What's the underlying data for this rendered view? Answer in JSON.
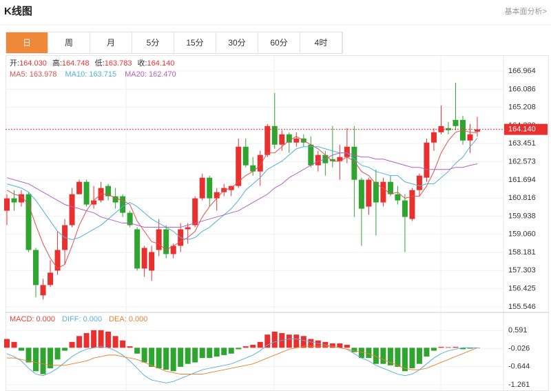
{
  "header": {
    "title": "K线图",
    "link": "基本面分析>"
  },
  "tabs": {
    "items": [
      "日",
      "周",
      "月",
      "5分",
      "15分",
      "30分",
      "60分",
      "4时"
    ],
    "active": 0
  },
  "chart_data": [
    {
      "type": "candlestick",
      "info": [
        {
          "label": "开:",
          "value": "164.030"
        },
        {
          "label": "高:",
          "value": "164.748"
        },
        {
          "label": "低:",
          "value": "163.783"
        },
        {
          "label": "收:",
          "value": "164.140"
        }
      ],
      "info_value_color": "#e8312f",
      "ohlc": [
        [
          160.2,
          161.0,
          159.5,
          160.8
        ],
        [
          160.8,
          161.2,
          160.2,
          160.6
        ],
        [
          160.6,
          161.2,
          160.4,
          161.0
        ],
        [
          161.0,
          161.1,
          158.2,
          158.3
        ],
        [
          158.3,
          158.4,
          156.0,
          156.6
        ],
        [
          156.1,
          156.9,
          155.9,
          156.6
        ],
        [
          156.6,
          157.8,
          156.5,
          157.2
        ],
        [
          157.3,
          159.2,
          157.1,
          158.3
        ],
        [
          158.3,
          159.8,
          157.6,
          159.5
        ],
        [
          159.5,
          161.3,
          159.4,
          161.0
        ],
        [
          161.0,
          161.7,
          161.0,
          161.6
        ],
        [
          161.6,
          161.7,
          160.4,
          160.5
        ],
        [
          160.5,
          161.4,
          160.3,
          160.7
        ],
        [
          160.7,
          161.6,
          160.6,
          161.3
        ],
        [
          161.4,
          161.5,
          160.7,
          160.9
        ],
        [
          160.9,
          161.3,
          160.3,
          160.6
        ],
        [
          160.9,
          161.0,
          159.9,
          160.1
        ],
        [
          160.1,
          160.2,
          159.4,
          159.5
        ],
        [
          159.3,
          159.4,
          157.3,
          157.4
        ],
        [
          157.4,
          158.5,
          157.0,
          158.4
        ],
        [
          157.3,
          158.5,
          156.8,
          158.2
        ],
        [
          158.3,
          159.8,
          158.0,
          159.3
        ],
        [
          159.3,
          159.5,
          157.9,
          158.1
        ],
        [
          158.1,
          158.6,
          157.9,
          158.5
        ],
        [
          158.5,
          159.6,
          158.2,
          159.3
        ],
        [
          159.3,
          159.6,
          158.6,
          159.4
        ],
        [
          159.5,
          160.9,
          159.4,
          160.8
        ],
        [
          160.8,
          162.0,
          160.7,
          161.8
        ],
        [
          161.8,
          161.9,
          160.4,
          160.8
        ],
        [
          160.8,
          161.3,
          160.2,
          161.1
        ],
        [
          161.1,
          161.5,
          160.9,
          161.3
        ],
        [
          161.2,
          161.4,
          160.9,
          161.4
        ],
        [
          161.4,
          163.7,
          161.3,
          163.3
        ],
        [
          163.3,
          163.7,
          162.3,
          162.4
        ],
        [
          162.4,
          162.8,
          161.9,
          162.1
        ],
        [
          162.1,
          163.1,
          161.4,
          162.9
        ],
        [
          162.9,
          164.4,
          162.8,
          164.3
        ],
        [
          164.3,
          165.9,
          163.2,
          163.4
        ],
        [
          163.4,
          164.1,
          163.1,
          163.9
        ],
        [
          163.9,
          164.0,
          163.0,
          163.5
        ],
        [
          163.5,
          164.0,
          163.3,
          163.7
        ],
        [
          163.7,
          163.9,
          163.3,
          163.5
        ],
        [
          163.4,
          163.8,
          162.3,
          162.4
        ],
        [
          162.4,
          163.1,
          162.1,
          162.9
        ],
        [
          162.9,
          163.1,
          161.9,
          162.5
        ],
        [
          162.7,
          164.3,
          162.3,
          162.6
        ],
        [
          162.6,
          163.4,
          161.7,
          162.8
        ],
        [
          162.8,
          164.2,
          162.5,
          163.3
        ],
        [
          163.3,
          164.3,
          159.9,
          161.7
        ],
        [
          161.7,
          161.8,
          158.5,
          160.3
        ],
        [
          160.4,
          161.8,
          160.0,
          161.7
        ],
        [
          161.6,
          162.2,
          159.0,
          160.6
        ],
        [
          160.6,
          161.8,
          160.4,
          161.6
        ],
        [
          161.6,
          161.9,
          160.9,
          161.0
        ],
        [
          161.0,
          161.4,
          160.5,
          160.7
        ],
        [
          160.7,
          161.0,
          158.2,
          159.9
        ],
        [
          159.8,
          161.3,
          159.7,
          161.2
        ],
        [
          161.2,
          162.0,
          160.9,
          161.9
        ],
        [
          161.8,
          163.7,
          161.6,
          163.5
        ],
        [
          163.5,
          164.2,
          163.1,
          164.0
        ],
        [
          164.0,
          165.3,
          163.9,
          164.3
        ],
        [
          164.2,
          164.5,
          163.9,
          164.1
        ],
        [
          164.6,
          166.4,
          164.1,
          164.3
        ],
        [
          164.6,
          164.8,
          163.4,
          163.6
        ],
        [
          163.6,
          164.4,
          163.0,
          163.9
        ],
        [
          164.03,
          164.748,
          163.783,
          164.14
        ]
      ],
      "up_color": "#e8312f",
      "down_color": "#2ea52e",
      "series": [
        {
          "label": "MA5: 163.978",
          "color": "#e0504f",
          "values": [
            161.2,
            161.0,
            160.9,
            160.5,
            159.5,
            158.6,
            157.9,
            157.4,
            157.6,
            158.5,
            159.5,
            160.2,
            160.7,
            161.0,
            161.0,
            160.8,
            160.7,
            160.5,
            159.7,
            159.2,
            158.7,
            158.6,
            158.3,
            158.5,
            158.7,
            158.9,
            159.2,
            159.9,
            160.4,
            160.8,
            161.2,
            161.3,
            161.6,
            161.9,
            162.1,
            162.4,
            163.0,
            163.0,
            163.3,
            163.6,
            163.8,
            163.6,
            163.4,
            163.2,
            162.9,
            162.6,
            162.6,
            162.8,
            162.6,
            162.1,
            161.9,
            161.5,
            161.3,
            161.0,
            161.1,
            160.8,
            160.9,
            160.9,
            161.4,
            162.1,
            163.0,
            163.6,
            164.0,
            164.1,
            164.0,
            163.978
          ]
        },
        {
          "label": "MA10: 163.715",
          "color": "#4fb0d9",
          "values": [
            161.5,
            161.4,
            161.3,
            161.1,
            160.7,
            160.2,
            159.7,
            159.2,
            158.9,
            158.8,
            158.9,
            159.1,
            159.3,
            159.5,
            159.8,
            160.1,
            160.4,
            160.6,
            160.4,
            160.1,
            159.8,
            159.6,
            159.4,
            159.2,
            158.9,
            158.8,
            158.9,
            159.2,
            159.4,
            159.7,
            160.0,
            160.3,
            160.7,
            161.2,
            161.5,
            161.8,
            162.2,
            162.4,
            162.6,
            162.9,
            163.2,
            163.3,
            163.3,
            163.3,
            163.2,
            163.1,
            163.0,
            163.0,
            162.7,
            162.4,
            162.3,
            162.1,
            162.0,
            161.9,
            161.9,
            161.6,
            161.5,
            161.4,
            161.5,
            161.5,
            161.8,
            162.1,
            162.5,
            162.8,
            163.3,
            163.715
          ]
        },
        {
          "label": "MA20: 162.470",
          "color": "#b35fc4",
          "values": [
            161.8,
            161.7,
            161.6,
            161.5,
            161.3,
            161.1,
            160.9,
            160.7,
            160.5,
            160.4,
            160.3,
            160.2,
            160.1,
            159.9,
            159.8,
            159.7,
            159.6,
            159.6,
            159.5,
            159.4,
            159.4,
            159.4,
            159.4,
            159.4,
            159.4,
            159.5,
            159.6,
            159.7,
            159.8,
            159.9,
            160.0,
            160.1,
            160.2,
            160.4,
            160.6,
            160.8,
            161.0,
            161.3,
            161.5,
            161.8,
            162.0,
            162.2,
            162.4,
            162.6,
            162.7,
            162.9,
            163.0,
            163.0,
            162.9,
            162.8,
            162.8,
            162.7,
            162.7,
            162.6,
            162.5,
            162.4,
            162.3,
            162.3,
            162.2,
            162.2,
            162.2,
            162.2,
            162.3,
            162.3,
            162.4,
            162.47
          ]
        }
      ],
      "ylim": [
        155.31,
        167.4
      ],
      "yticks": [
        166.964,
        166.086,
        165.208,
        {
          "value": 164.33,
          "label": "164.330"
        },
        163.451,
        162.573,
        161.694,
        160.816,
        159.938,
        {
          "value": 159.06,
          "label": "159.060"
        },
        158.181,
        157.303,
        156.425,
        155.546
      ],
      "grid": true,
      "last_price": {
        "value": 164.14,
        "label": "164.140",
        "color": "#e8312f"
      }
    },
    {
      "type": "macd",
      "histogram": {
        "label": "MACD: 0.000",
        "color": "#e0413a",
        "up_color": "#e8312f",
        "down_color": "#2ea52e",
        "values": [
          0.3,
          0.2,
          -0.1,
          -0.5,
          -0.8,
          -0.9,
          -0.7,
          -0.4,
          -0.1,
          0.2,
          0.4,
          0.5,
          0.6,
          0.6,
          0.55,
          0.4,
          0.25,
          0.05,
          -0.2,
          -0.5,
          -0.65,
          -0.7,
          -0.75,
          -0.8,
          -0.65,
          -0.55,
          -0.5,
          -0.35,
          -0.35,
          -0.3,
          -0.25,
          -0.2,
          -0.05,
          0.05,
          0.1,
          0.2,
          0.45,
          0.55,
          0.5,
          0.45,
          0.45,
          0.4,
          0.3,
          0.25,
          0.2,
          0.15,
          0.15,
          0.1,
          -0.15,
          -0.35,
          -0.35,
          -0.55,
          -0.55,
          -0.6,
          -0.65,
          -0.8,
          -0.7,
          -0.55,
          -0.3,
          -0.1,
          0.03,
          0.02,
          0.03,
          -0.05,
          -0.03,
          0.0
        ]
      },
      "series": [
        {
          "label": "DIFF: 0.000",
          "color": "#5ab0dc",
          "values": [
            -0.2,
            -0.3,
            -0.45,
            -0.7,
            -0.9,
            -0.95,
            -0.85,
            -0.7,
            -0.5,
            -0.3,
            -0.15,
            -0.05,
            0.0,
            0.05,
            0.0,
            -0.1,
            -0.25,
            -0.45,
            -0.7,
            -0.95,
            -1.1,
            -1.15,
            -1.2,
            -1.15,
            -1.05,
            -0.95,
            -0.85,
            -0.75,
            -0.7,
            -0.65,
            -0.6,
            -0.55,
            -0.45,
            -0.35,
            -0.25,
            -0.1,
            0.1,
            0.2,
            0.25,
            0.3,
            0.3,
            0.25,
            0.2,
            0.15,
            0.1,
            0.05,
            0.0,
            -0.05,
            -0.2,
            -0.35,
            -0.45,
            -0.6,
            -0.7,
            -0.8,
            -0.9,
            -0.95,
            -0.9,
            -0.75,
            -0.55,
            -0.35,
            -0.2,
            -0.1,
            -0.05,
            0.0,
            0.0,
            0.0
          ]
        },
        {
          "label": "DEA: 0.000",
          "color": "#e6822e",
          "values": [
            -0.35,
            -0.35,
            -0.4,
            -0.45,
            -0.5,
            -0.55,
            -0.6,
            -0.6,
            -0.6,
            -0.55,
            -0.5,
            -0.45,
            -0.35,
            -0.3,
            -0.25,
            -0.25,
            -0.3,
            -0.35,
            -0.4,
            -0.5,
            -0.6,
            -0.7,
            -0.8,
            -0.85,
            -0.9,
            -0.9,
            -0.9,
            -0.9,
            -0.85,
            -0.8,
            -0.75,
            -0.7,
            -0.65,
            -0.6,
            -0.55,
            -0.45,
            -0.35,
            -0.25,
            -0.15,
            -0.05,
            0.0,
            0.05,
            0.05,
            0.05,
            0.05,
            0.05,
            0.0,
            -0.05,
            -0.1,
            -0.15,
            -0.2,
            -0.3,
            -0.4,
            -0.5,
            -0.6,
            -0.7,
            -0.75,
            -0.75,
            -0.7,
            -0.6,
            -0.5,
            -0.4,
            -0.3,
            -0.2,
            -0.1,
            0.0
          ]
        }
      ],
      "ylim": [
        -1.475,
        1.16
      ],
      "yticks": [
        0.591,
        -0.026,
        -0.644,
        -1.261
      ],
      "grid": true
    }
  ]
}
